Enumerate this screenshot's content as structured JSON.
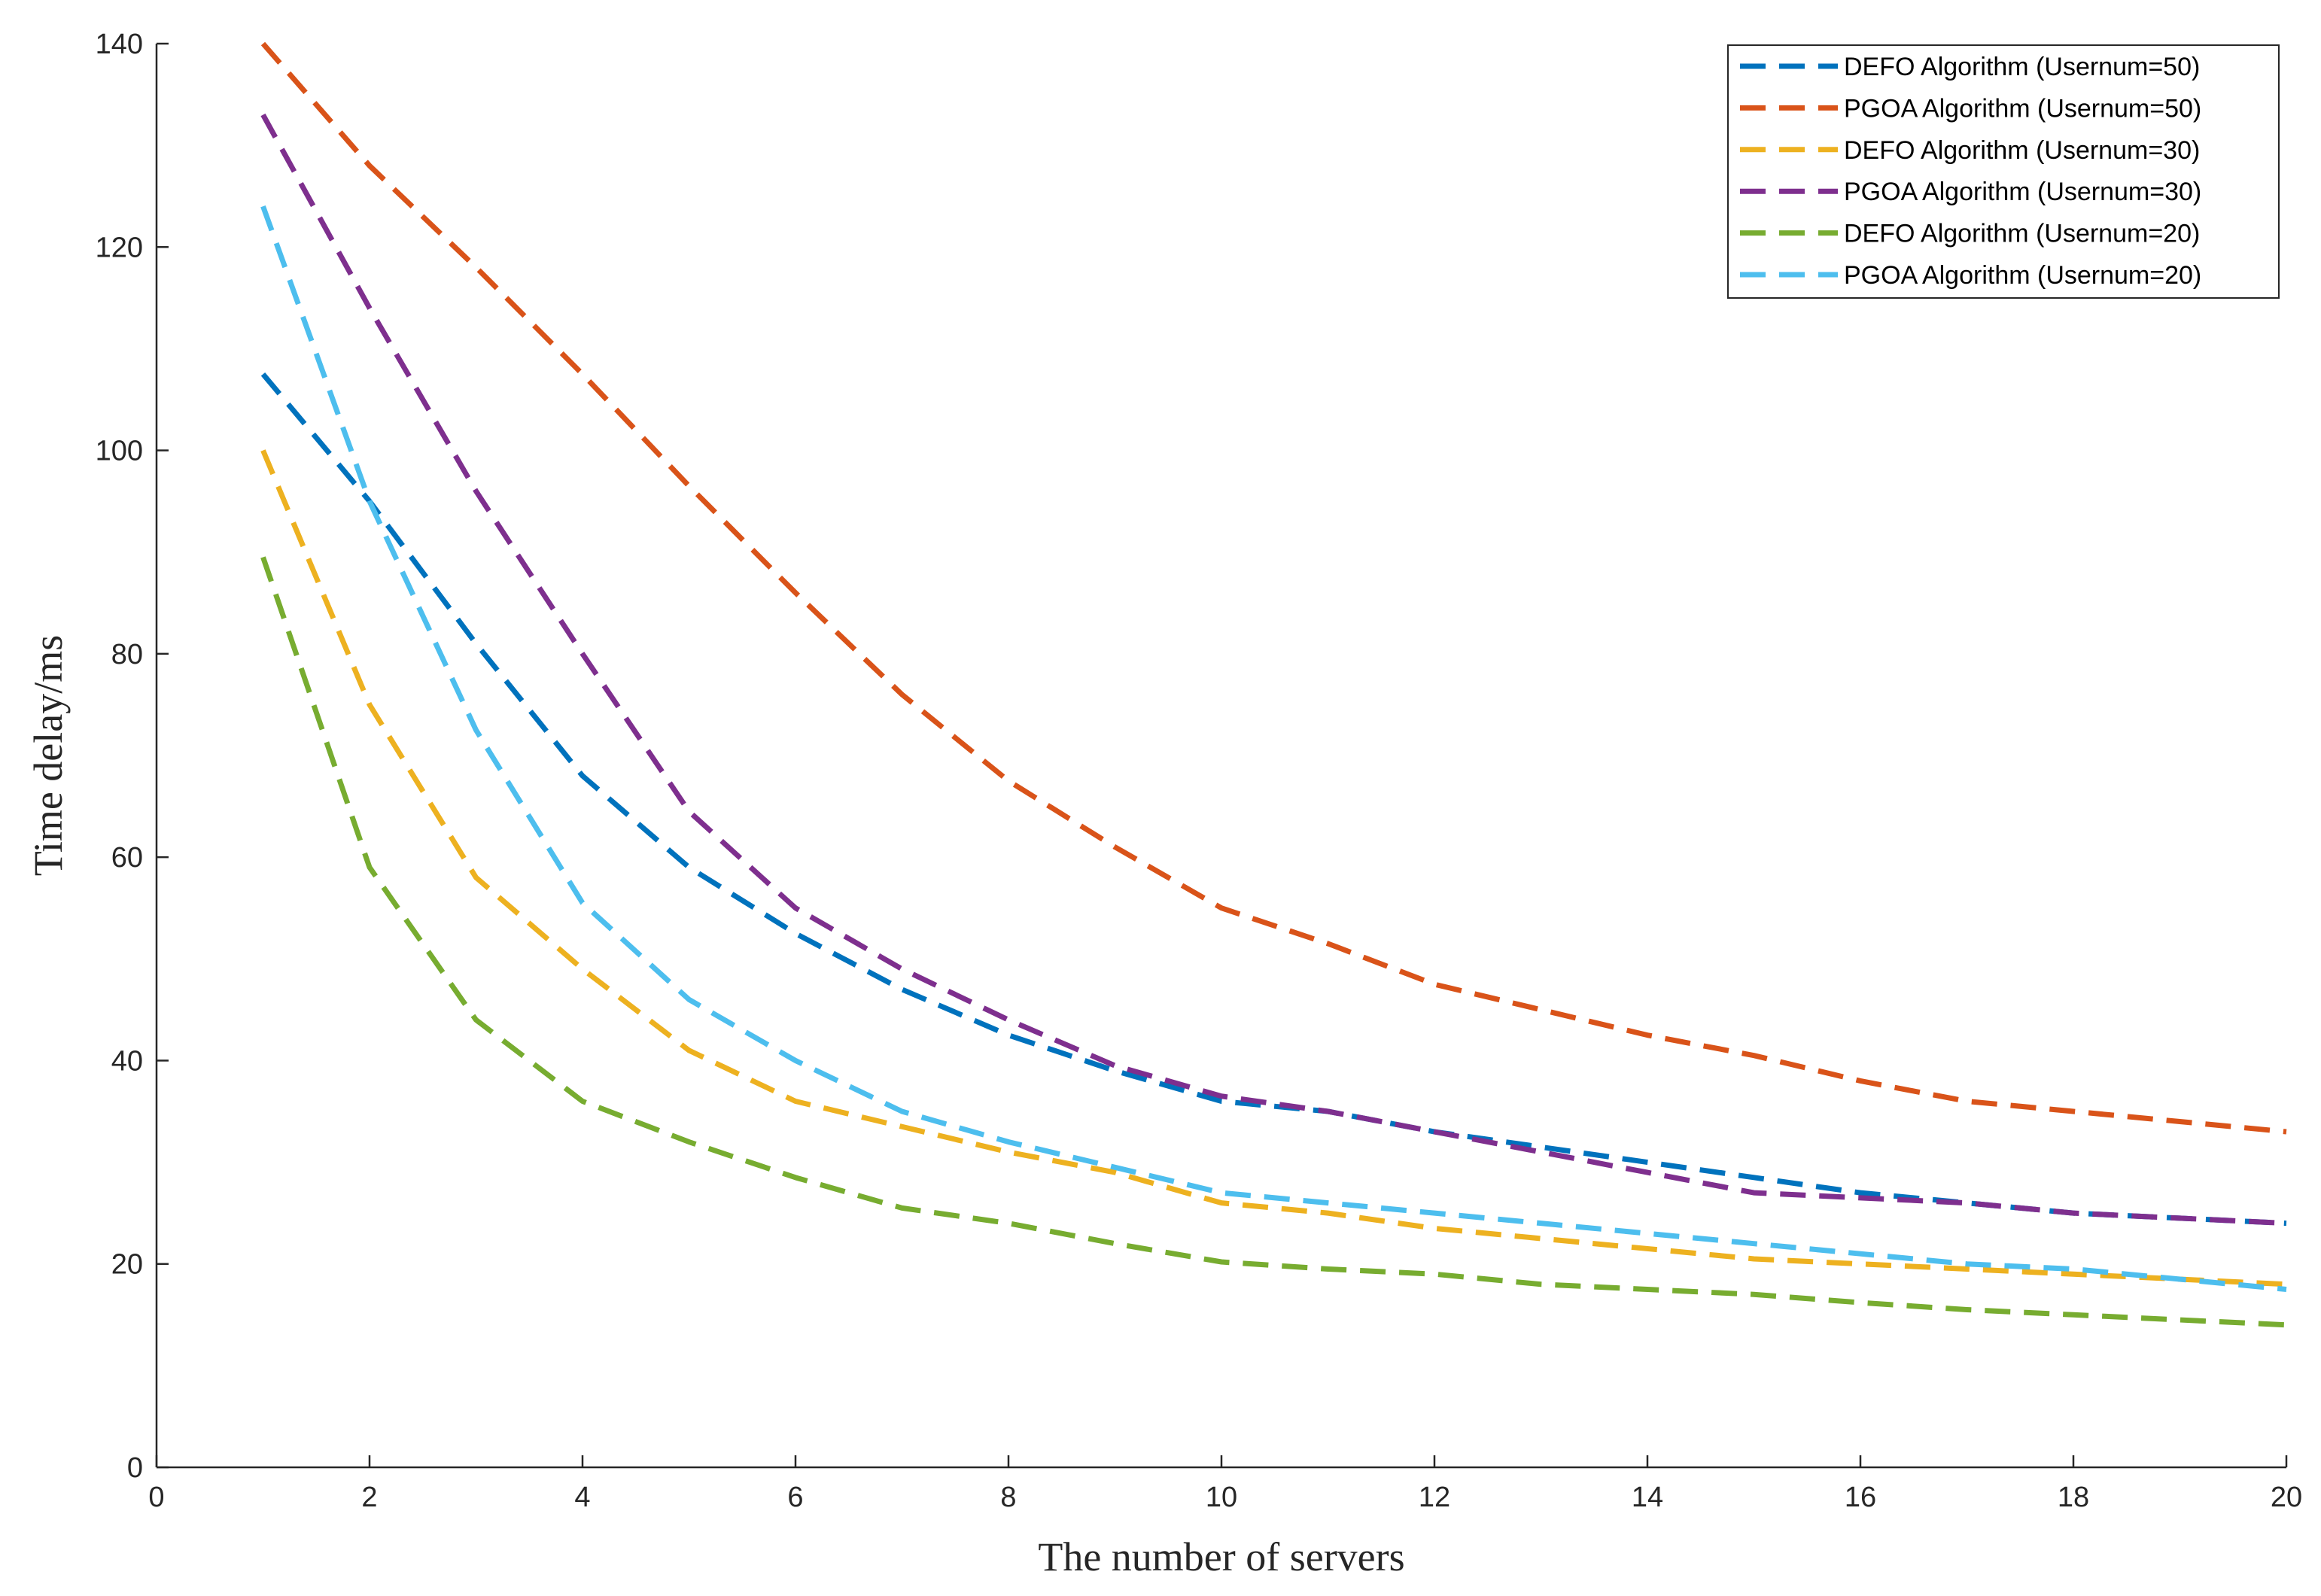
{
  "chart_data": {
    "type": "line",
    "title": "",
    "xlabel": "The number of servers",
    "ylabel": "Time delay/ms",
    "xlim": [
      0,
      20
    ],
    "ylim": [
      0,
      140
    ],
    "xticks": [
      0,
      2,
      4,
      6,
      8,
      10,
      12,
      14,
      16,
      18,
      20
    ],
    "yticks": [
      0,
      20,
      40,
      60,
      80,
      100,
      120,
      140
    ],
    "grid": false,
    "legend_position": "top-right",
    "x": [
      1,
      2,
      3,
      4,
      5,
      6,
      7,
      8,
      9,
      10,
      11,
      12,
      13,
      14,
      15,
      16,
      17,
      18,
      19,
      20
    ],
    "series": [
      {
        "name": "DEFO Algorithm (Usernum=50)",
        "color": "#0072BD",
        "values": [
          107.5,
          95,
          81,
          68,
          59,
          52.5,
          47,
          42.5,
          39,
          36,
          35,
          33,
          31.5,
          30,
          28.5,
          27,
          26,
          25,
          24.5,
          24
        ]
      },
      {
        "name": "PGOA Algorithm (Usernum=50)",
        "color": "#D95319",
        "values": [
          140,
          128,
          118,
          107.5,
          96.5,
          86,
          76,
          67.5,
          61,
          55,
          51.5,
          47.5,
          45,
          42.5,
          40.5,
          38,
          36,
          35,
          34,
          33
        ]
      },
      {
        "name": "DEFO Algorithm (Usernum=30)",
        "color": "#EDB120",
        "values": [
          100,
          75,
          58,
          49,
          41,
          36,
          33.5,
          31,
          29,
          26,
          25,
          23.5,
          22.5,
          21.5,
          20.5,
          20,
          19.5,
          19,
          18.5,
          18
        ]
      },
      {
        "name": "PGOA Algorithm (Usernum=30)",
        "color": "#7E2F8E",
        "values": [
          133,
          114,
          96,
          80,
          64.5,
          55,
          49,
          44,
          39.5,
          36.5,
          35,
          33,
          31,
          29,
          27,
          26.5,
          26,
          25,
          24.5,
          24
        ]
      },
      {
        "name": "DEFO Algorithm (Usernum=20)",
        "color": "#77AC30",
        "values": [
          89.5,
          59,
          44,
          36,
          32,
          28.5,
          25.5,
          24,
          22,
          20.2,
          19.5,
          19,
          18,
          17.5,
          17,
          16.2,
          15.5,
          15,
          14.5,
          14
        ]
      },
      {
        "name": "PGOA Algorithm (Usernum=20)",
        "color": "#4DBEEE",
        "values": [
          124,
          95,
          72.5,
          55.5,
          46,
          40,
          35,
          32,
          29.5,
          27,
          26,
          25,
          24,
          23,
          22,
          21,
          20,
          19.5,
          18.5,
          17.5
        ]
      }
    ]
  }
}
